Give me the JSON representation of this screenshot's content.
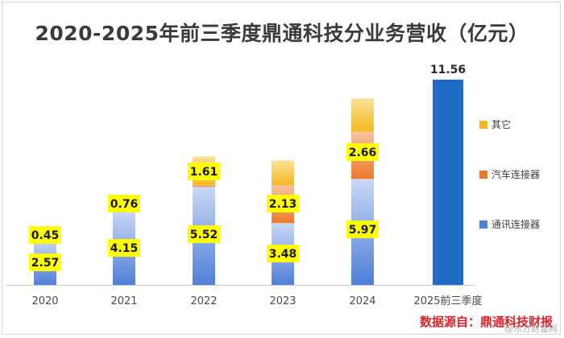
{
  "title": "2020-2025年前三季度鼎通科技分业务营收（亿元）",
  "source": "数据源自：鼎通科技财报",
  "watermark": "@东方财富网",
  "colors": {
    "comm": "#4f7fd8",
    "comm_light": "#c9d8f5",
    "auto": "#ee7a2c",
    "auto_light": "#f8c2a0",
    "other": "#f3b91f",
    "other_light": "#fae29a",
    "total": "#1f6bc4",
    "highlight": "#ffff00"
  },
  "chart_data": {
    "type": "bar",
    "stacked": true,
    "title": "2020-2025年前三季度鼎通科技分业务营收（亿元）",
    "categories": [
      "2020",
      "2021",
      "2022",
      "2023",
      "2024",
      "2025前三季度"
    ],
    "series": [
      {
        "name": "通讯连接器",
        "key": "comm",
        "values": [
          2.57,
          4.15,
          5.52,
          3.48,
          5.97,
          null
        ]
      },
      {
        "name": "汽车连接器",
        "key": "auto",
        "values": [
          0.03,
          0.05,
          0.1,
          2.13,
          2.66,
          null
        ]
      },
      {
        "name": "其它",
        "key": "other",
        "values": [
          0.45,
          0.76,
          1.61,
          1.4,
          1.87,
          null
        ]
      }
    ],
    "labeled": {
      "comm": [
        "2.57",
        "4.15",
        "5.52",
        "3.48",
        "5.97"
      ],
      "auto": [
        "",
        "",
        "",
        "2.13",
        "2.66"
      ],
      "other": [
        "0.45",
        "0.76",
        "1.61",
        "",
        ""
      ]
    },
    "total_bar": {
      "category": "2025前三季度",
      "value": 11.56,
      "label": "11.56"
    },
    "legend": [
      "其它",
      "汽车连接器",
      "通讯连接器"
    ],
    "legend_position": "right",
    "ylim": [
      0,
      12.6
    ]
  }
}
